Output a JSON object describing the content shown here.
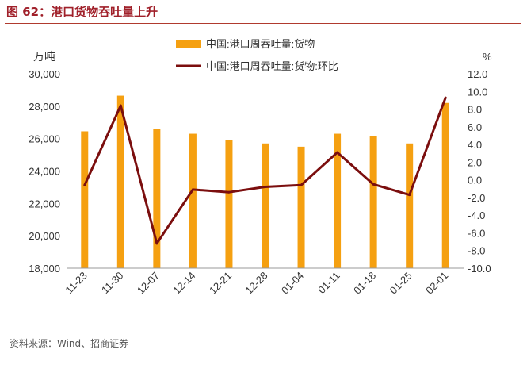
{
  "figure_title": "图 62：港口货物吞吐量上升",
  "source": "资料来源：Wind、招商证券",
  "colors": {
    "bar": "#F5A011",
    "line": "#7B0E0E",
    "title": "#a0202a"
  },
  "chart_data": {
    "type": "bar+line",
    "categories": [
      "11-23",
      "11-30",
      "12-07",
      "12-14",
      "12-21",
      "12-28",
      "01-04",
      "01-11",
      "01-18",
      "01-25",
      "02-01"
    ],
    "series": [
      {
        "name": "中国:港口周吞吐量:货物",
        "type": "bar",
        "axis": "left",
        "values": [
          26450,
          28650,
          26600,
          26300,
          25900,
          25700,
          25500,
          26300,
          26150,
          25700,
          28200
        ]
      },
      {
        "name": "中国:港口周吞吐量:货物:环比",
        "type": "line",
        "axis": "right",
        "values": [
          -0.6,
          8.4,
          -7.2,
          -1.1,
          -1.4,
          -0.8,
          -0.6,
          3.1,
          -0.5,
          -1.7,
          9.3
        ]
      }
    ],
    "left_axis": {
      "unit": "万吨",
      "ylim": [
        18000,
        30000
      ],
      "ticks": [
        "18,000",
        "20,000",
        "22,000",
        "24,000",
        "26,000",
        "28,000",
        "30,000"
      ]
    },
    "right_axis": {
      "unit": "%",
      "ylim": [
        -10,
        12
      ],
      "ticks": [
        "-10.0",
        "-8.0",
        "-6.0",
        "-4.0",
        "-2.0",
        "0.0",
        "2.0",
        "4.0",
        "6.0",
        "8.0",
        "10.0",
        "12.0"
      ]
    },
    "legend_position": "top-center",
    "grid": false
  }
}
